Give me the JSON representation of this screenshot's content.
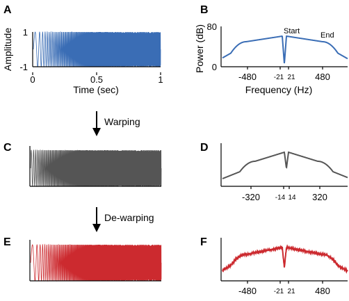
{
  "panels": {
    "a": {
      "letter": "A",
      "ylabel": "Amplitude",
      "xlabel": "Time (sec)",
      "xticks": [
        "0",
        "0.5",
        "1"
      ],
      "yticks": [
        "1",
        "-1"
      ],
      "color": "#3a6db5"
    },
    "b": {
      "letter": "B",
      "ylabel": "Power (dB)",
      "xlabel": "Frequency (Hz)",
      "xticks": [
        "-480",
        "-21",
        "21",
        "480"
      ],
      "yticks": [
        "80",
        "0"
      ],
      "start_label": "Start",
      "end_label": "End",
      "color": "#3a6db5"
    },
    "c": {
      "letter": "C",
      "color": "#555555"
    },
    "d": {
      "letter": "D",
      "xticks": [
        "-320",
        "-14",
        "14",
        "320"
      ],
      "color": "#555555"
    },
    "e": {
      "letter": "E",
      "color": "#cc2a2f"
    },
    "f": {
      "letter": "F",
      "xticks": [
        "-480",
        "-21",
        "21",
        "480"
      ],
      "color": "#cc2a2f"
    }
  },
  "steps": {
    "warping": "Warping",
    "dewarping": "De-warping"
  },
  "chart_data": [
    {
      "type": "line",
      "panel": "A",
      "description_series": "linear chirp",
      "x": [
        0,
        1
      ],
      "xlabel": "Time (sec)",
      "ylabel": "Amplitude",
      "xlim": [
        0,
        1
      ],
      "ylim": [
        -1,
        1
      ],
      "f_start_hz": 21,
      "f_end_hz": 480
    },
    {
      "type": "line",
      "panel": "B",
      "xlabel": "Frequency (Hz)",
      "ylabel": "Power (dB)",
      "ylim": [
        0,
        80
      ],
      "xlim": [
        -650,
        650
      ],
      "band_hz": [
        21,
        480
      ]
    },
    {
      "type": "line",
      "panel": "C",
      "xlim": [
        0,
        1
      ],
      "ylim": [
        -1,
        1
      ]
    },
    {
      "type": "line",
      "panel": "D",
      "xlim": [
        -450,
        450
      ],
      "band_hz": [
        14,
        320
      ]
    },
    {
      "type": "line",
      "panel": "E",
      "xlim": [
        0,
        1
      ],
      "ylim": [
        -1,
        1
      ]
    },
    {
      "type": "line",
      "panel": "F",
      "xlim": [
        -650,
        650
      ],
      "band_hz": [
        21,
        480
      ]
    }
  ]
}
